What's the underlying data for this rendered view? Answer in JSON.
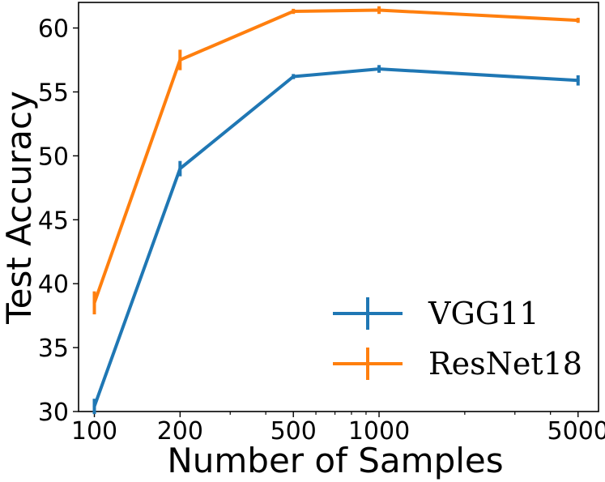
{
  "chart_data": {
    "type": "line",
    "xscale": "log",
    "x": [
      100,
      200,
      500,
      1000,
      5000
    ],
    "series": [
      {
        "name": "VGG11",
        "color": "#1f77b4",
        "values": [
          30.4,
          49.0,
          56.2,
          56.8,
          55.9
        ],
        "errors": [
          0.6,
          0.6,
          0.2,
          0.3,
          0.4
        ]
      },
      {
        "name": "ResNet18",
        "color": "#ff7f0e",
        "values": [
          38.5,
          57.5,
          61.3,
          61.4,
          60.6
        ],
        "errors": [
          0.9,
          0.8,
          0.2,
          0.3,
          0.2
        ]
      }
    ],
    "xlabel": "Number of Samples",
    "ylabel": "Test Accuracy",
    "xlim": [
      88,
      5900
    ],
    "ylim": [
      30,
      62
    ],
    "xticks": [
      100,
      200,
      500,
      1000,
      5000
    ],
    "xtick_labels": [
      "100",
      "200",
      "500",
      "1000",
      "5000"
    ],
    "yticks": [
      30,
      35,
      40,
      45,
      50,
      55,
      60
    ],
    "ytick_labels": [
      "30",
      "35",
      "40",
      "45",
      "50",
      "55",
      "60"
    ],
    "legend_position": "lower-right",
    "grid": false
  }
}
